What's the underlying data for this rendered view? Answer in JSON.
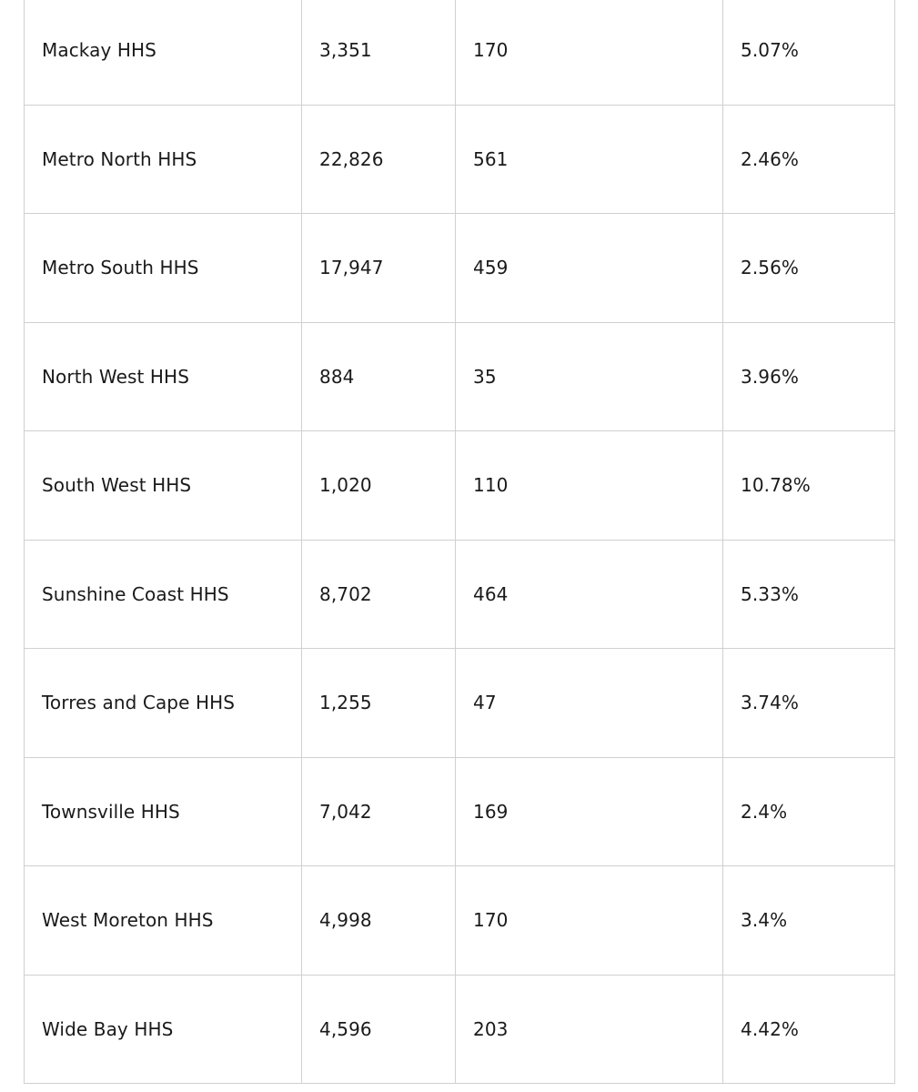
{
  "table": {
    "rows": [
      {
        "region": "Mackay HHS",
        "value_a": "3,351",
        "value_b": "170",
        "percent": "5.07%"
      },
      {
        "region": "Metro North HHS",
        "value_a": "22,826",
        "value_b": "561",
        "percent": "2.46%"
      },
      {
        "region": "Metro South HHS",
        "value_a": "17,947",
        "value_b": "459",
        "percent": "2.56%"
      },
      {
        "region": "North West HHS",
        "value_a": "884",
        "value_b": "35",
        "percent": "3.96%"
      },
      {
        "region": "South West HHS",
        "value_a": "1,020",
        "value_b": "110",
        "percent": "10.78%"
      },
      {
        "region": "Sunshine Coast HHS",
        "value_a": "8,702",
        "value_b": "464",
        "percent": "5.33%"
      },
      {
        "region": "Torres and Cape HHS",
        "value_a": "1,255",
        "value_b": "47",
        "percent": "3.74%"
      },
      {
        "region": "Townsville HHS",
        "value_a": "7,042",
        "value_b": "169",
        "percent": "2.4%"
      },
      {
        "region": "West Moreton HHS",
        "value_a": "4,998",
        "value_b": "170",
        "percent": "3.4%"
      },
      {
        "region": "Wide Bay HHS",
        "value_a": "4,596",
        "value_b": "203",
        "percent": "4.42%"
      }
    ]
  }
}
